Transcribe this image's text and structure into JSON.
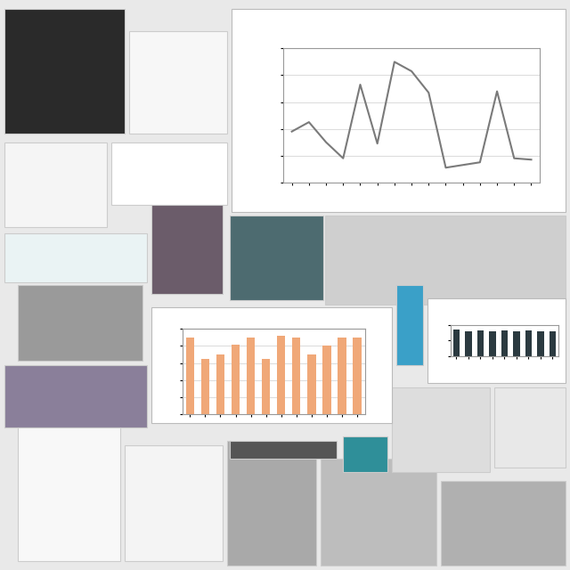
{
  "chart_data": [
    {
      "type": "line",
      "categories": [
        null,
        null,
        null,
        null,
        null,
        null,
        null,
        null,
        null,
        null,
        null,
        null,
        null,
        null,
        null
      ],
      "values": [
        38,
        45,
        30,
        18,
        73,
        29,
        90,
        83,
        67,
        11,
        13,
        15,
        68,
        18,
        17
      ],
      "color": "#7a7a7a",
      "ylim": [
        0,
        100
      ],
      "yticks": [
        0,
        20,
        40,
        60,
        80,
        100
      ],
      "grid": true,
      "tick_labels": false
    },
    {
      "type": "bar",
      "categories": [
        null,
        null,
        null,
        null,
        null,
        null,
        null,
        null,
        null,
        null,
        null,
        null
      ],
      "values": [
        90,
        65,
        70,
        82,
        90,
        65,
        92,
        90,
        70,
        80,
        90,
        90
      ],
      "color": "#f0a878",
      "ylim": [
        0,
        100
      ],
      "yticks": [
        0,
        20,
        40,
        60,
        80,
        100
      ],
      "grid": true,
      "tick_labels": false
    },
    {
      "type": "bar",
      "categories": [
        null,
        null,
        null,
        null,
        null,
        null,
        null,
        null,
        null
      ],
      "values": [
        85,
        80,
        82,
        80,
        82,
        80,
        82,
        80,
        80
      ],
      "color": "#2b3a40",
      "ylim": [
        0,
        100
      ],
      "yticks": [
        0,
        50,
        100
      ],
      "grid": false,
      "tick_labels": false
    }
  ]
}
